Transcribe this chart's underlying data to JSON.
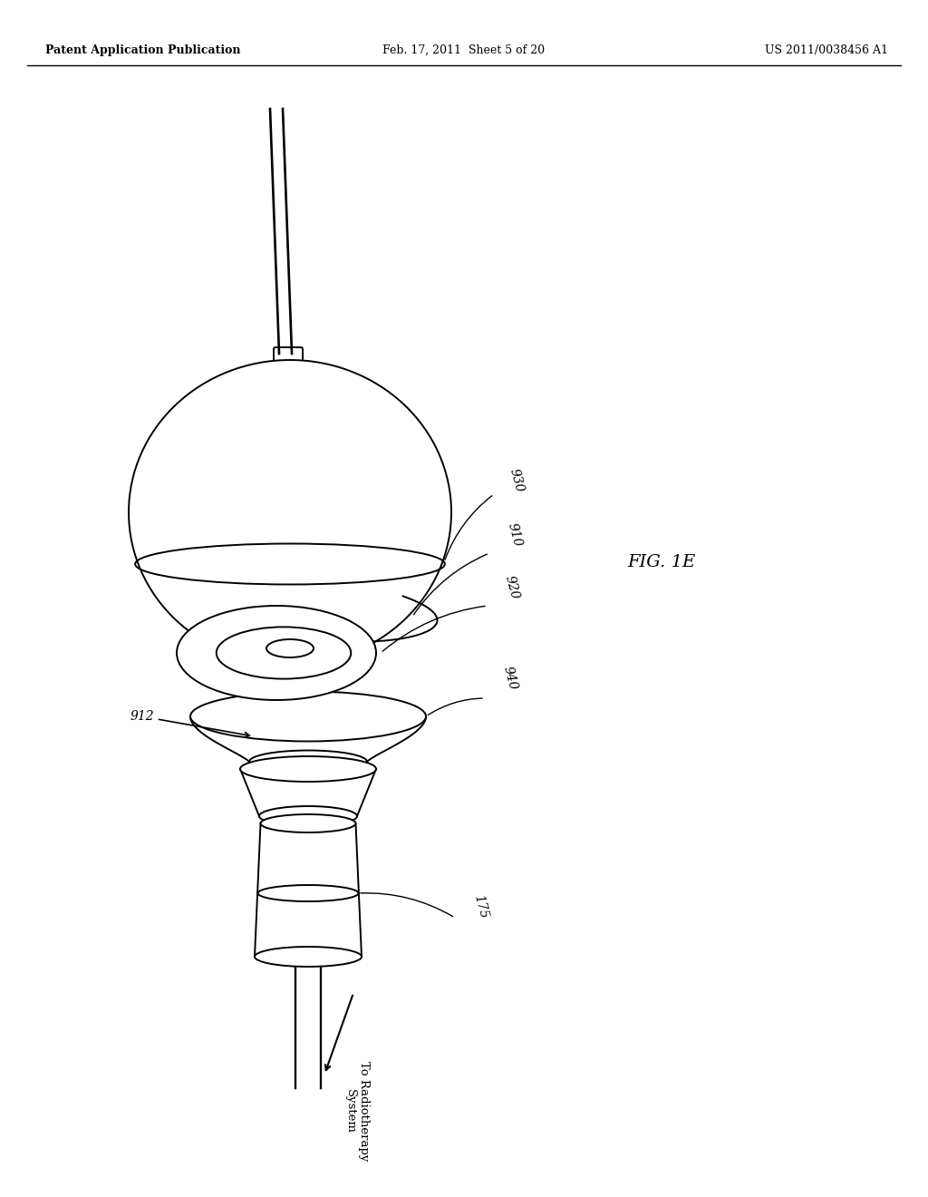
{
  "bg_color": "#ffffff",
  "header_left": "Patent Application Publication",
  "header_mid": "Feb. 17, 2011  Sheet 5 of 20",
  "header_right": "US 2011/0038456 A1",
  "fig_label": "FIG. 1E",
  "line_color": "#000000",
  "text_color": "#000000",
  "lw": 1.4,
  "label_fontsize": 10,
  "header_fontsize": 9
}
